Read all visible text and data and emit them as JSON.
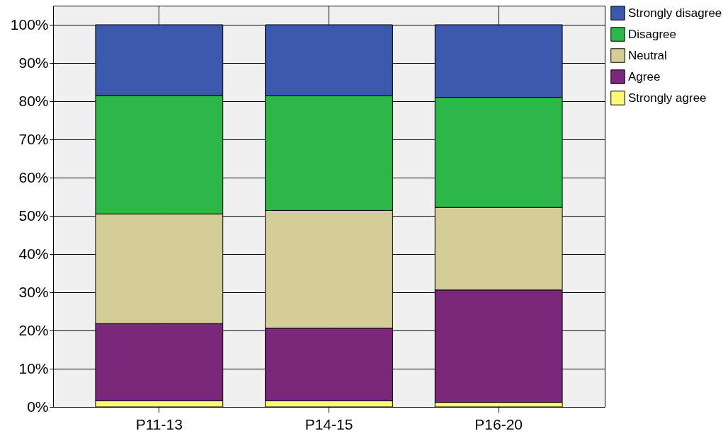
{
  "chart_data": {
    "type": "bar",
    "stacked": true,
    "categories": [
      "P11-13",
      "P14-15",
      "P16-20"
    ],
    "series": [
      {
        "name": "Strongly agree",
        "color": "#fbf873",
        "values": [
          1.6,
          1.6,
          1.2
        ]
      },
      {
        "name": "Agree",
        "color": "#7b287b",
        "values": [
          20.2,
          19.0,
          29.4
        ]
      },
      {
        "name": "Neutral",
        "color": "#d3ce98",
        "values": [
          28.7,
          30.8,
          21.6
        ]
      },
      {
        "name": "Disagree",
        "color": "#2fb84a",
        "values": [
          31.0,
          30.0,
          28.8
        ]
      },
      {
        "name": "Strongly disagree",
        "color": "#3c58ad",
        "values": [
          18.5,
          18.6,
          19.0
        ]
      }
    ],
    "ylim": [
      0,
      105
    ],
    "yticks": [
      {
        "value": 0,
        "label": "0%"
      },
      {
        "value": 10,
        "label": "10%"
      },
      {
        "value": 20,
        "label": "20%"
      },
      {
        "value": 30,
        "label": "30%"
      },
      {
        "value": 40,
        "label": "40%"
      },
      {
        "value": 50,
        "label": "50%"
      },
      {
        "value": 60,
        "label": "60%"
      },
      {
        "value": 70,
        "label": "70%"
      },
      {
        "value": 80,
        "label": "80%"
      },
      {
        "value": 90,
        "label": "90%"
      },
      {
        "value": 100,
        "label": "100%"
      }
    ],
    "grid": true,
    "legend": "top right"
  }
}
